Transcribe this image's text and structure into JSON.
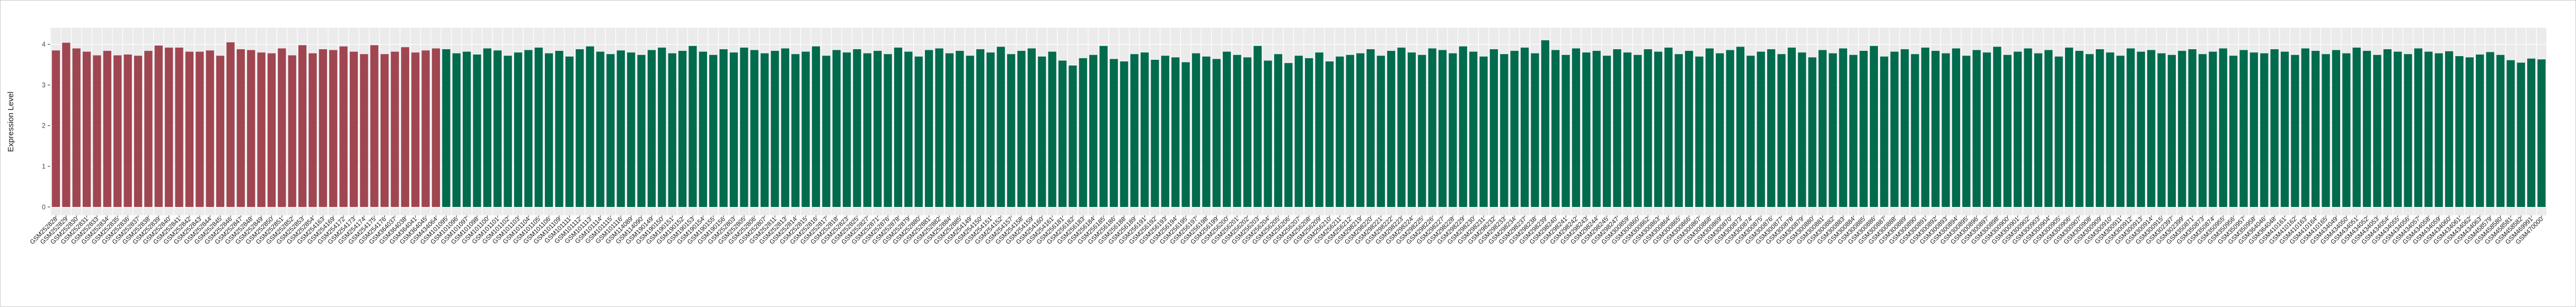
{
  "chart": {
    "y_axis_title": "Expression Level",
    "colors": {
      "panel_background": "#EBEBEB",
      "gridline": "#FFFFFF",
      "tick_mark": "#333333",
      "axis_text": "#4a4a4a",
      "axis_title": "#1a1a1a",
      "group1_red": "#A04651",
      "group2_green": "#006B4D"
    }
  },
  "chart_data": {
    "type": "bar",
    "title": "",
    "xlabel": "",
    "ylabel": "Expression Level",
    "ylim": [
      0,
      4.4
    ],
    "yticks": [
      0,
      1,
      2,
      3,
      4
    ],
    "legend_position": "none",
    "grid": "ggplot gray panel, white major/minor gridlines",
    "groups": [
      {
        "name": "group-1-red",
        "color": "#A04651",
        "count": 38
      },
      {
        "name": "group-2-green",
        "color": "#006B4D",
        "count": 205
      }
    ],
    "categories": [
      "GSM252828",
      "GSM252829",
      "GSM252830",
      "GSM252831",
      "GSM252833",
      "GSM252834",
      "GSM252835",
      "GSM252836",
      "GSM252837",
      "GSM252838",
      "GSM252839",
      "GSM252840",
      "GSM252841",
      "GSM252842",
      "GSM252843",
      "GSM252844",
      "GSM252845",
      "GSM252846",
      "GSM252847",
      "GSM252848",
      "GSM252849",
      "GSM252850",
      "GSM252851",
      "GSM252852",
      "GSM252853",
      "GSM252854",
      "GSM254163",
      "GSM254169",
      "GSM254172",
      "GSM254173",
      "GSM254174",
      "GSM254175",
      "GSM254176",
      "GSM364037",
      "GSM364038",
      "GSM364041",
      "GSM364045",
      "GSM434064",
      "GSM101095",
      "GSM101096",
      "GSM101097",
      "GSM101098",
      "GSM101100",
      "GSM101101",
      "GSM101102",
      "GSM101103",
      "GSM101104",
      "GSM101105",
      "GSM101106",
      "GSM101109",
      "GSM101111",
      "GSM101112",
      "GSM101113",
      "GSM101114",
      "GSM101115",
      "GSM101116",
      "GSM114089",
      "GSM114090",
      "GSM190149",
      "GSM190150",
      "GSM190151",
      "GSM190152",
      "GSM190153",
      "GSM190154",
      "GSM190155",
      "GSM190156",
      "GSM252803",
      "GSM252805",
      "GSM252806",
      "GSM252807",
      "GSM252811",
      "GSM252813",
      "GSM252814",
      "GSM252815",
      "GSM252816",
      "GSM252817",
      "GSM252818",
      "GSM252823",
      "GSM252825",
      "GSM252827",
      "GSM252871",
      "GSM252876",
      "GSM252878",
      "GSM252879",
      "GSM252880",
      "GSM252881",
      "GSM252882",
      "GSM252884",
      "GSM252885",
      "GSM254149",
      "GSM254150",
      "GSM254151",
      "GSM254152",
      "GSM254157",
      "GSM254158",
      "GSM254159",
      "GSM254160",
      "GSM254161",
      "GSM256181",
      "GSM256182",
      "GSM256183",
      "GSM256184",
      "GSM256185",
      "GSM256186",
      "GSM256188",
      "GSM256189",
      "GSM256191",
      "GSM256192",
      "GSM256193",
      "GSM256194",
      "GSM256195",
      "GSM256197",
      "GSM256198",
      "GSM256199",
      "GSM256200",
      "GSM256201",
      "GSM256202",
      "GSM256203",
      "GSM256204",
      "GSM256205",
      "GSM256206",
      "GSM256207",
      "GSM256208",
      "GSM256209",
      "GSM256210",
      "GSM256211",
      "GSM256212",
      "GSM298219",
      "GSM298220",
      "GSM298221",
      "GSM298222",
      "GSM298223",
      "GSM298224",
      "GSM298225",
      "GSM298226",
      "GSM298227",
      "GSM298228",
      "GSM298229",
      "GSM298230",
      "GSM298231",
      "GSM298232",
      "GSM298233",
      "GSM298234",
      "GSM298237",
      "GSM298238",
      "GSM298239",
      "GSM298240",
      "GSM298241",
      "GSM298242",
      "GSM298243",
      "GSM298244",
      "GSM298245",
      "GSM298247",
      "GSM300859",
      "GSM300860",
      "GSM300862",
      "GSM300863",
      "GSM300864",
      "GSM300865",
      "GSM300866",
      "GSM300867",
      "GSM300868",
      "GSM300869",
      "GSM300870",
      "GSM300873",
      "GSM300874",
      "GSM300875",
      "GSM300876",
      "GSM300877",
      "GSM300878",
      "GSM300879",
      "GSM300880",
      "GSM300881",
      "GSM300882",
      "GSM300883",
      "GSM300884",
      "GSM300885",
      "GSM300886",
      "GSM300887",
      "GSM300888",
      "GSM300889",
      "GSM300890",
      "GSM300891",
      "GSM300892",
      "GSM300893",
      "GSM300894",
      "GSM300895",
      "GSM300896",
      "GSM300897",
      "GSM300898",
      "GSM300900",
      "GSM300901",
      "GSM300902",
      "GSM300903",
      "GSM300904",
      "GSM300905",
      "GSM300906",
      "GSM300907",
      "GSM300908",
      "GSM300909",
      "GSM300910",
      "GSM300911",
      "GSM300912",
      "GSM300913",
      "GSM300914",
      "GSM300915",
      "GSM302397",
      "GSM302399",
      "GSM350871",
      "GSM350873",
      "GSM350874",
      "GSM350955",
      "GSM350956",
      "GSM350957",
      "GSM350958",
      "GSM364046",
      "GSM364048",
      "GSM410161",
      "GSM410162",
      "GSM410163",
      "GSM410164",
      "GSM410165",
      "GSM434049",
      "GSM434050",
      "GSM434051",
      "GSM434052",
      "GSM434053",
      "GSM434054",
      "GSM434055",
      "GSM434056",
      "GSM434057",
      "GSM434058",
      "GSM434059",
      "GSM434060",
      "GSM434061",
      "GSM434062",
      "GSM434063",
      "GSM458579",
      "GSM458580",
      "GSM458581",
      "GSM458582",
      "GSM469991",
      "GSM470000"
    ],
    "values": [
      3.85,
      4.04,
      3.9,
      3.82,
      3.73,
      3.84,
      3.73,
      3.75,
      3.72,
      3.84,
      3.97,
      3.92,
      3.92,
      3.82,
      3.82,
      3.85,
      3.72,
      4.05,
      3.88,
      3.86,
      3.8,
      3.78,
      3.9,
      3.73,
      3.98,
      3.78,
      3.88,
      3.86,
      3.95,
      3.82,
      3.76,
      3.98,
      3.76,
      3.82,
      3.93,
      3.8,
      3.85,
      3.9,
      3.88,
      3.78,
      3.82,
      3.75,
      3.9,
      3.85,
      3.72,
      3.8,
      3.86,
      3.92,
      3.78,
      3.84,
      3.7,
      3.88,
      3.95,
      3.82,
      3.76,
      3.85,
      3.8,
      3.74,
      3.86,
      3.92,
      3.78,
      3.84,
      3.96,
      3.82,
      3.74,
      3.88,
      3.8,
      3.92,
      3.86,
      3.78,
      3.84,
      3.9,
      3.76,
      3.82,
      3.95,
      3.72,
      3.86,
      3.8,
      3.88,
      3.78,
      3.84,
      3.76,
      3.92,
      3.82,
      3.7,
      3.86,
      3.9,
      3.78,
      3.84,
      3.72,
      3.88,
      3.8,
      3.94,
      3.76,
      3.84,
      3.9,
      3.7,
      3.82,
      3.6,
      3.48,
      3.66,
      3.74,
      3.96,
      3.64,
      3.58,
      3.76,
      3.8,
      3.62,
      3.72,
      3.68,
      3.56,
      3.78,
      3.7,
      3.64,
      3.82,
      3.74,
      3.68,
      3.96,
      3.6,
      3.76,
      3.54,
      3.72,
      3.66,
      3.8,
      3.58,
      3.7,
      3.74,
      3.78,
      3.88,
      3.72,
      3.84,
      3.92,
      3.8,
      3.74,
      3.9,
      3.86,
      3.78,
      3.95,
      3.82,
      3.7,
      3.88,
      3.76,
      3.84,
      3.92,
      3.78,
      4.1,
      3.86,
      3.74,
      3.9,
      3.8,
      3.84,
      3.72,
      3.88,
      3.8,
      3.74,
      3.88,
      3.82,
      3.92,
      3.76,
      3.84,
      3.7,
      3.9,
      3.78,
      3.86,
      3.94,
      3.72,
      3.82,
      3.88,
      3.76,
      3.92,
      3.8,
      3.68,
      3.86,
      3.78,
      3.9,
      3.74,
      3.84,
      3.96,
      3.7,
      3.82,
      3.88,
      3.76,
      3.92,
      3.84,
      3.78,
      3.9,
      3.72,
      3.86,
      3.8,
      3.94,
      3.74,
      3.82,
      3.9,
      3.78,
      3.86,
      3.7,
      3.92,
      3.84,
      3.76,
      3.88,
      3.8,
      3.72,
      3.9,
      3.82,
      3.86,
      3.78,
      3.74,
      3.84,
      3.88,
      3.76,
      3.82,
      3.9,
      3.72,
      3.86,
      3.8,
      3.78,
      3.88,
      3.82,
      3.74,
      3.9,
      3.84,
      3.76,
      3.86,
      3.78,
      3.92,
      3.84,
      3.74,
      3.88,
      3.82,
      3.76,
      3.9,
      3.82,
      3.78,
      3.83,
      3.71,
      3.68,
      3.75,
      3.81,
      3.74,
      3.61,
      3.55,
      3.65,
      3.63
    ]
  }
}
